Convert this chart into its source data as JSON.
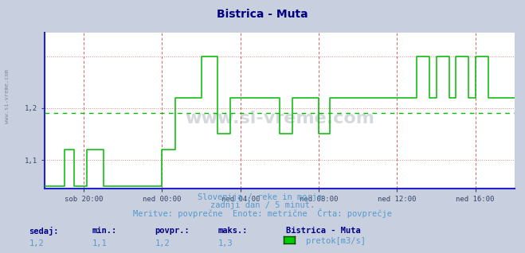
{
  "title": "Bistrica - Muta",
  "title_color": "#000080",
  "title_fontsize": 10,
  "bg_color": "#c8d0df",
  "plot_bg_color": "#ffffff",
  "line_color": "#00bb00",
  "avg_line_color": "#00bb00",
  "avg_value": 1.19,
  "ymin": 1.045,
  "ymax": 1.345,
  "yticks": [
    1.1,
    1.2
  ],
  "xlabel_ticks": [
    "sob 20:00",
    "ned 00:00",
    "ned 04:00",
    "ned 08:00",
    "ned 12:00",
    "ned 16:00"
  ],
  "xtick_positions": [
    24,
    72,
    120,
    168,
    216,
    264
  ],
  "grid_v_color": "#dd4444",
  "grid_h_color": "#dd8888",
  "axis_color": "#2222cc",
  "footer_line1": "Slovenija / reke in morje.",
  "footer_line2": "zadnji dan / 5 minut.",
  "footer_line3": "Meritve: povprečne  Enote: metrične  Črta: povprečje",
  "footer_color": "#5599cc",
  "footer_fontsize": 7.5,
  "legend_title": "Bistrica - Muta",
  "legend_label": "pretok[m3/s]",
  "legend_color": "#00cc00",
  "stats_labels": [
    "sedaj:",
    "min.:",
    "povpr.:",
    "maks.:"
  ],
  "stats_values": [
    "1,2",
    "1,1",
    "1,2",
    "1,3"
  ],
  "stats_color": "#5599cc",
  "stats_bold_color": "#000088",
  "watermark": "www.si-vreme.com",
  "left_label": "www.si-vreme.com"
}
